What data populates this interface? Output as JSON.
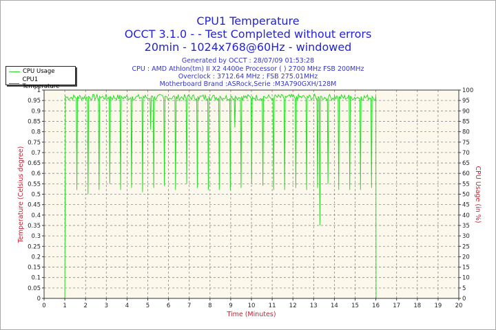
{
  "header": {
    "title": "CPU1 Temperature",
    "line2": "OCCT 3.1.0 -  - Test Completed without errors",
    "line3": "20min - 1024x768@60Hz - windowed",
    "generated": "Generated by OCCT : 28/07/09 01:53:28",
    "cpu": "CPU : AMD Athlon(tm) II X2 4400e Processor (  ) 2700 MHz FSB 200MHz",
    "overclock": "Overclock : 3712.64 MHz ; FSB 275.01MHz",
    "motherboard": "Motherboard Brand :ASRock,Serie :M3A790GXH/128M"
  },
  "chart_data": {
    "type": "line",
    "xlabel": "Time (Minutes)",
    "ylabel": "Temperature (Celsius degree)",
    "y2label": "CPU Usage (in %)",
    "xlim": [
      0,
      20
    ],
    "ylim": [
      0,
      1
    ],
    "y2lim": [
      0,
      100
    ],
    "xticks": [
      "0",
      "1",
      "2",
      "3",
      "4",
      "5",
      "6",
      "7",
      "8",
      "9",
      "10",
      "11",
      "12",
      "13",
      "14",
      "15",
      "16",
      "17",
      "18",
      "19",
      "20"
    ],
    "yticks": [
      "0",
      "0.05",
      "0.1",
      "0.15",
      "0.2",
      "0.25",
      "0.3",
      "0.35",
      "0.4",
      "0.45",
      "0.5",
      "0.55",
      "0.6",
      "0.65",
      "0.7",
      "0.75",
      "0.8",
      "0.85",
      "0.9",
      "0.95",
      "1"
    ],
    "y2ticks": [
      "0",
      "5",
      "10",
      "15",
      "20",
      "25",
      "30",
      "35",
      "40",
      "45",
      "50",
      "55",
      "60",
      "65",
      "70",
      "75",
      "80",
      "85",
      "90",
      "95",
      "100"
    ],
    "grid": true,
    "legend_position": "top-left",
    "series": [
      {
        "name": "CPU Usage",
        "color": "#22dd22",
        "axis": "right",
        "baseline": 97,
        "start": 1.0,
        "end": 16.0,
        "dips": [
          [
            1.58,
            52
          ],
          [
            2.12,
            50
          ],
          [
            2.65,
            52
          ],
          [
            3.17,
            55
          ],
          [
            3.69,
            52
          ],
          [
            4.22,
            53
          ],
          [
            4.75,
            51
          ],
          [
            5.14,
            81
          ],
          [
            5.29,
            53
          ],
          [
            5.8,
            54
          ],
          [
            6.34,
            52
          ],
          [
            6.88,
            55
          ],
          [
            7.39,
            53
          ],
          [
            7.92,
            52
          ],
          [
            8.45,
            52
          ],
          [
            8.98,
            52
          ],
          [
            9.2,
            82
          ],
          [
            9.5,
            53
          ],
          [
            10.01,
            55
          ],
          [
            10.55,
            54
          ],
          [
            11.07,
            52
          ],
          [
            11.6,
            52
          ],
          [
            12.14,
            53
          ],
          [
            12.66,
            52
          ],
          [
            13.19,
            53
          ],
          [
            13.3,
            35
          ],
          [
            13.69,
            55
          ],
          [
            14.21,
            52
          ],
          [
            14.74,
            52
          ],
          [
            15.26,
            52
          ],
          [
            15.79,
            53
          ]
        ]
      },
      {
        "name": "CPU1 Temperature",
        "color": "#dd2222",
        "axis": "left",
        "points": []
      }
    ]
  }
}
